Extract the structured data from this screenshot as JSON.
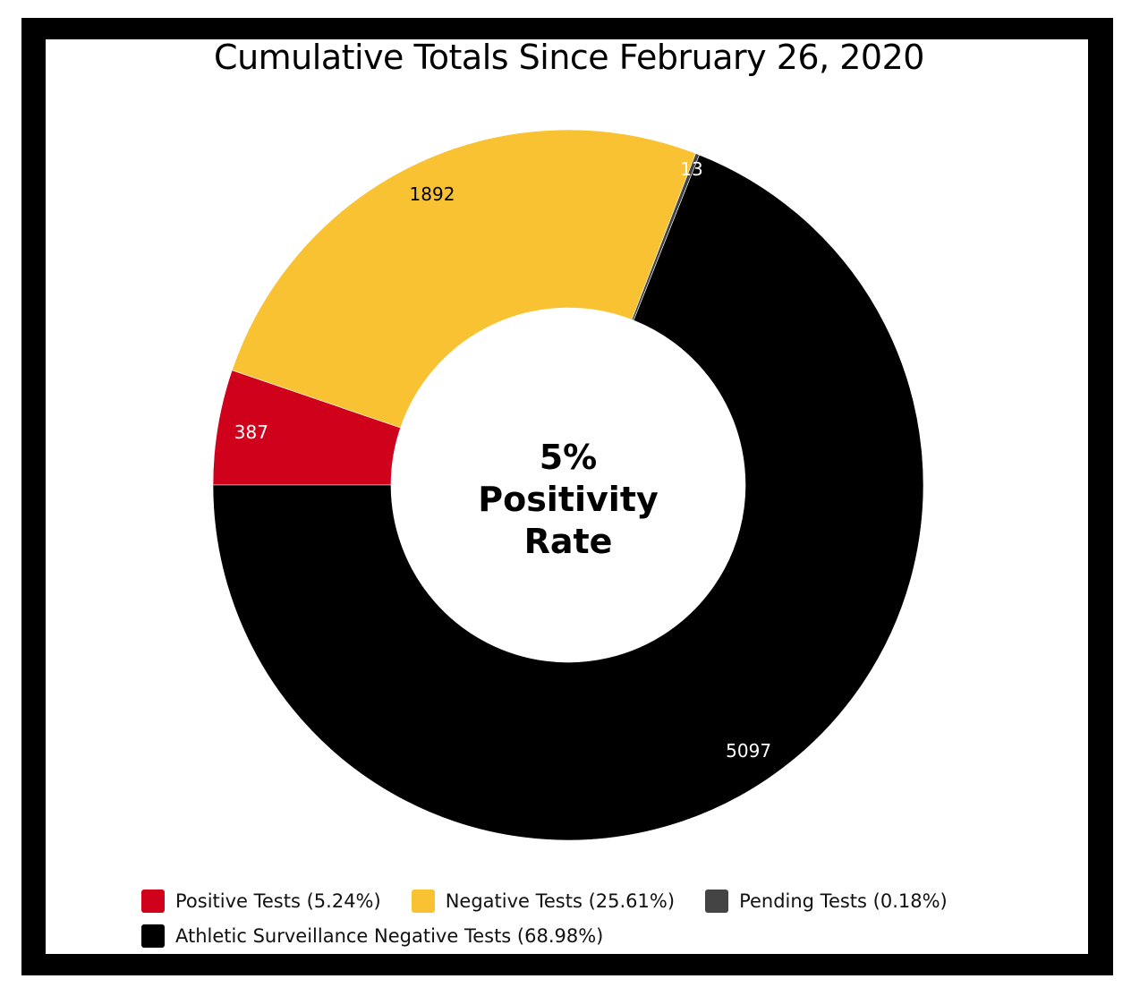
{
  "chart_data": {
    "type": "pie",
    "variant": "donut",
    "title": "Cumulative Totals Since February 26, 2020",
    "center_text": [
      "5%",
      "Positivity",
      "Rate"
    ],
    "slices": [
      {
        "label": "Positive Tests (5.24%)",
        "value": 387,
        "color": "#d0021b",
        "label_color": "#ffffff"
      },
      {
        "label": "Negative Tests (25.61%)",
        "value": 1892,
        "color": "#f8c232",
        "label_color": "#000000"
      },
      {
        "label": "Pending Tests (0.18%)",
        "value": 13,
        "color": "#444444",
        "label_color": "#ffffff"
      },
      {
        "label": "Athletic Surveillance Negative Tests (68.98%)",
        "value": 5097,
        "color": "#000000",
        "label_color": "#ffffff"
      }
    ],
    "legend_position": "bottom"
  }
}
